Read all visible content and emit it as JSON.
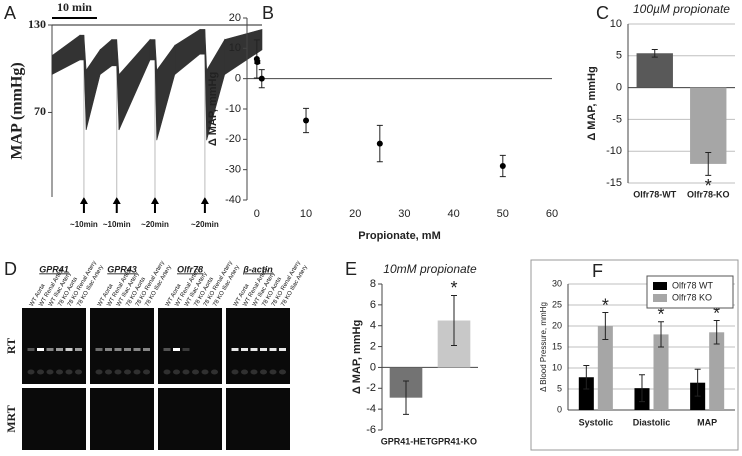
{
  "chart_data": [
    {
      "label": "A",
      "type": "trace",
      "ylabel": "MAP (mmHg)",
      "ylim": [
        12,
        130
      ],
      "yticks": [
        70,
        130
      ],
      "xlim": [
        0,
        46.7
      ],
      "scale_bar": {
        "label": "10 min",
        "length": 10
      },
      "x": [
        0,
        6.2,
        7.1,
        7.6,
        10.7,
        13.3,
        14.4,
        14.9,
        21.8,
        22.9,
        23.3,
        27.3,
        32.9,
        34,
        34.4,
        38.4,
        46.7
      ],
      "high": [
        109,
        123,
        123,
        99,
        113,
        120,
        120,
        96,
        120,
        120,
        99,
        116,
        127,
        127,
        99,
        120,
        127
      ],
      "low": [
        96,
        106,
        106,
        58,
        96,
        102,
        102,
        58,
        106,
        106,
        51,
        96,
        110,
        110,
        51,
        96,
        113
      ],
      "color": "#333333",
      "arrows": [
        {
          "x": 7.1,
          "label": "~10min"
        },
        {
          "x": 14.4,
          "label": "~10min"
        },
        {
          "x": 22.9,
          "label": "~20min"
        },
        {
          "x": 34,
          "label": "~20min"
        }
      ]
    },
    {
      "label": "B",
      "type": "scatter",
      "xlabel": "Propionate, mM",
      "ylabel": "Δ MAP, mmHg",
      "x": [
        0,
        0.1,
        1,
        10,
        25,
        50
      ],
      "values": [
        6.5,
        5.5,
        0,
        -13.8,
        -21.4,
        -28.8
      ],
      "errors": [
        6.3,
        0.5,
        3,
        4,
        6,
        3.5
      ],
      "color": "#000000",
      "xlim": [
        -2,
        60
      ],
      "xticks": [
        0,
        10,
        20,
        30,
        40,
        50,
        60
      ],
      "ylim": [
        -40,
        20
      ],
      "yticks": [
        -40,
        -30,
        -20,
        -10,
        0,
        10,
        20
      ]
    },
    {
      "label": "C",
      "type": "bar",
      "title": "100µM propionate",
      "ylabel": "Δ MAP, mmHg",
      "categories": [
        "Olfr78-WT",
        "Olfr78-KO"
      ],
      "values": [
        5.4,
        -12
      ],
      "errors": [
        0.6,
        1.8
      ],
      "colors": [
        "#595959",
        "#a6a6a6"
      ],
      "ylim": [
        -15,
        10
      ],
      "yticks": [
        -15,
        -10,
        -5,
        0,
        5,
        10
      ],
      "grid": true,
      "annotations": [
        {
          "text": "*",
          "category": "Olfr78-KO"
        }
      ]
    },
    {
      "label": "D",
      "type": "gel",
      "genes": [
        "GPR41",
        "GPR43",
        "Olfr78",
        "β-actin"
      ],
      "lanes": [
        "WT Aorta",
        "WT Renal Artery",
        "WT Iliac Artery",
        "78 KO Aorta",
        "78 KO Renal Artery",
        "78 KO Iliac Artery"
      ],
      "rows": [
        "RT",
        "MRT"
      ]
    },
    {
      "label": "E",
      "type": "bar",
      "title": "10mM propionate",
      "ylabel": "Δ MAP, mmHg",
      "categories": [
        "GPR41-HET",
        "GPR41-KO"
      ],
      "values": [
        -2.9,
        4.5
      ],
      "errors": [
        1.6,
        2.4
      ],
      "colors": [
        "#737373",
        "#c8c8c8"
      ],
      "ylim": [
        -6,
        8
      ],
      "yticks": [
        -6,
        -4,
        -2,
        0,
        2,
        4,
        6,
        8
      ],
      "grid": false,
      "annotations": [
        {
          "text": "*",
          "category": "GPR41-KO"
        }
      ]
    },
    {
      "label": "F",
      "type": "grouped_bar",
      "ylabel": "Δ Blood Pressure, mmHg",
      "categories": [
        "Systolic",
        "Diastolic",
        "MAP"
      ],
      "series": [
        {
          "name": "Olfr78 WT",
          "color": "#000000",
          "values": [
            7.8,
            5.2,
            6.5
          ],
          "errors": [
            2.8,
            3.2,
            3.2
          ]
        },
        {
          "name": "Olfr78 KO",
          "color": "#a6a6a6",
          "values": [
            20,
            18,
            18.5
          ],
          "errors": [
            3.2,
            3,
            2.8
          ],
          "annotations": [
            "*",
            "*",
            "*"
          ]
        }
      ],
      "ylim": [
        0,
        30
      ],
      "yticks": [
        0,
        5,
        10,
        15,
        20,
        25,
        30
      ],
      "grid": true,
      "legend": "top-right"
    }
  ]
}
